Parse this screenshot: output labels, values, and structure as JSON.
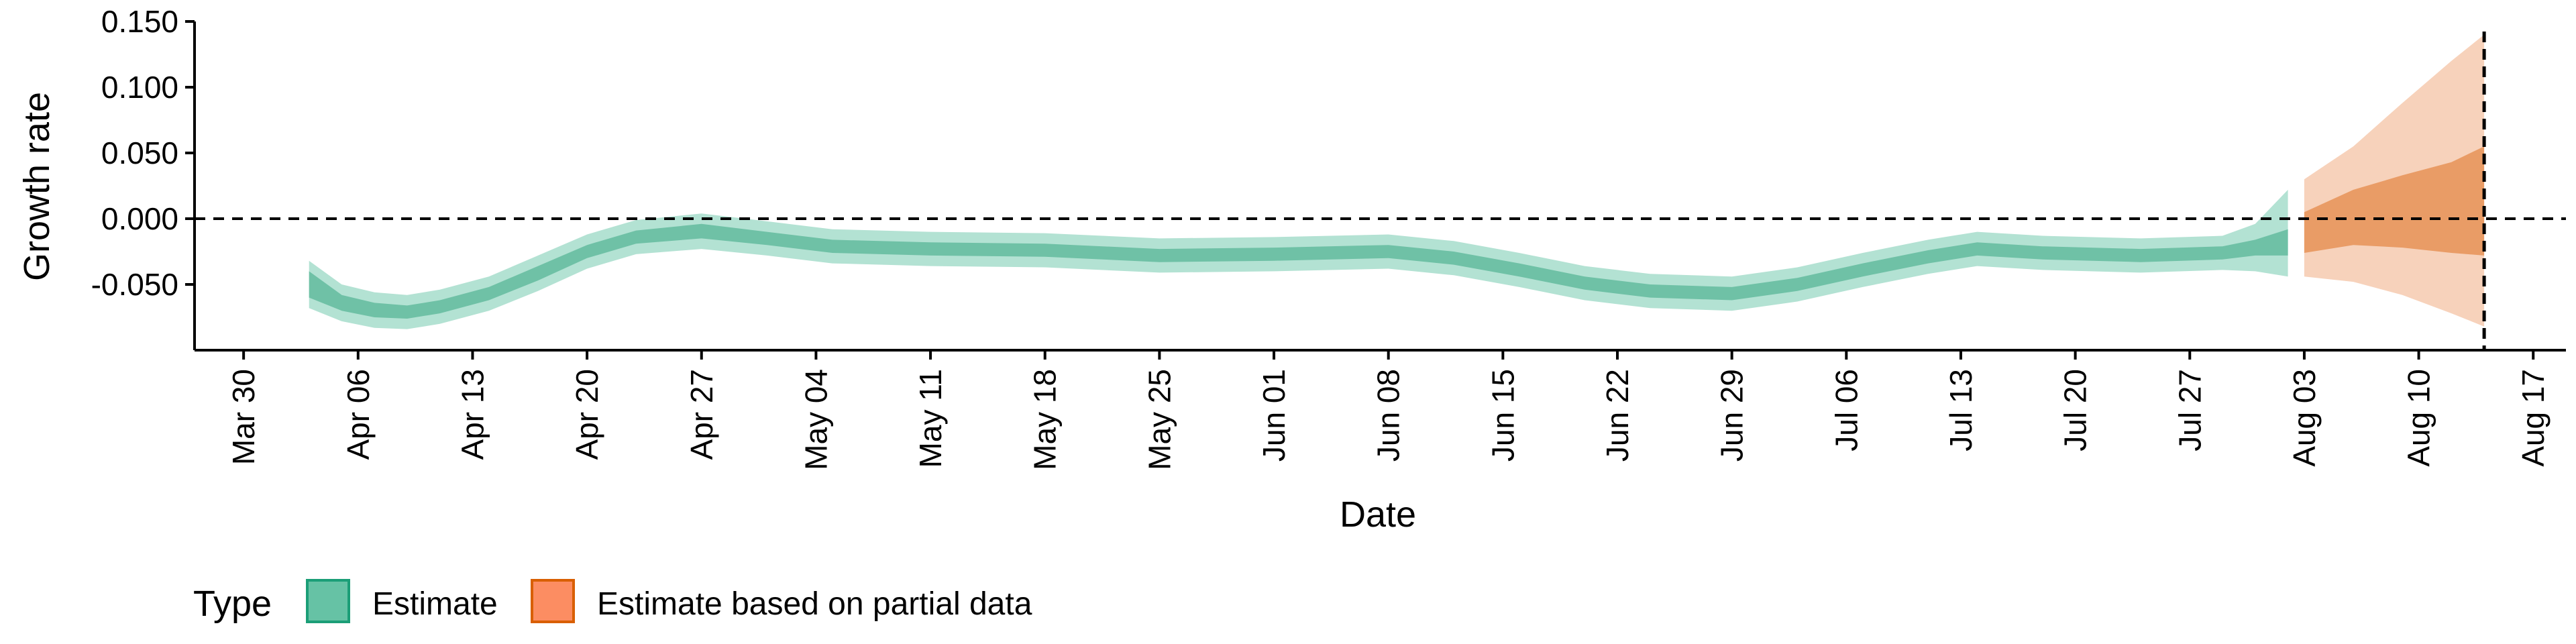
{
  "chart_data": {
    "type": "area",
    "title": "",
    "xlabel": "Date",
    "ylabel": "Growth rate",
    "x_range": [
      "2020-03-27",
      "2020-08-19"
    ],
    "ylim": [
      -0.1,
      0.15
    ],
    "x_ticks": [
      {
        "date": "2020-03-30",
        "label": "Mar 30"
      },
      {
        "date": "2020-04-06",
        "label": "Apr 06"
      },
      {
        "date": "2020-04-13",
        "label": "Apr 13"
      },
      {
        "date": "2020-04-20",
        "label": "Apr 20"
      },
      {
        "date": "2020-04-27",
        "label": "Apr 27"
      },
      {
        "date": "2020-05-04",
        "label": "May 04"
      },
      {
        "date": "2020-05-11",
        "label": "May 11"
      },
      {
        "date": "2020-05-18",
        "label": "May 18"
      },
      {
        "date": "2020-05-25",
        "label": "May 25"
      },
      {
        "date": "2020-06-01",
        "label": "Jun 01"
      },
      {
        "date": "2020-06-08",
        "label": "Jun 08"
      },
      {
        "date": "2020-06-15",
        "label": "Jun 15"
      },
      {
        "date": "2020-06-22",
        "label": "Jun 22"
      },
      {
        "date": "2020-06-29",
        "label": "Jun 29"
      },
      {
        "date": "2020-07-06",
        "label": "Jul 06"
      },
      {
        "date": "2020-07-13",
        "label": "Jul 13"
      },
      {
        "date": "2020-07-20",
        "label": "Jul 20"
      },
      {
        "date": "2020-07-27",
        "label": "Jul 27"
      },
      {
        "date": "2020-08-03",
        "label": "Aug 03"
      },
      {
        "date": "2020-08-10",
        "label": "Aug 10"
      },
      {
        "date": "2020-08-17",
        "label": "Aug 17"
      }
    ],
    "y_ticks": [
      {
        "value": -0.05,
        "label": "-0.050"
      },
      {
        "value": 0.0,
        "label": "0.000"
      },
      {
        "value": 0.05,
        "label": "0.050"
      },
      {
        "value": 0.1,
        "label": "0.100"
      },
      {
        "value": 0.15,
        "label": "0.150"
      }
    ],
    "reference_lines": {
      "horizontal_y": 0,
      "vertical_date": "2020-08-14"
    },
    "legend": {
      "title": "Type",
      "position": "bottom-left",
      "entries": [
        {
          "label": "Estimate",
          "fill": "#66c2a5",
          "border": "#1b9e77"
        },
        {
          "label": "Estimate based on partial data",
          "fill": "#fc8d62",
          "border": "#d95f02"
        }
      ]
    },
    "series": [
      {
        "name": "Estimate",
        "colors": {
          "outer": "#b3e2d3",
          "inner": "#6fc1a6"
        },
        "points": [
          {
            "x": "2020-04-03",
            "lo90": -0.068,
            "lo50": -0.06,
            "hi50": -0.04,
            "hi90": -0.032
          },
          {
            "x": "2020-04-05",
            "lo90": -0.078,
            "lo50": -0.07,
            "hi50": -0.058,
            "hi90": -0.05
          },
          {
            "x": "2020-04-07",
            "lo90": -0.083,
            "lo50": -0.075,
            "hi50": -0.064,
            "hi90": -0.056
          },
          {
            "x": "2020-04-09",
            "lo90": -0.084,
            "lo50": -0.076,
            "hi50": -0.066,
            "hi90": -0.058
          },
          {
            "x": "2020-04-11",
            "lo90": -0.08,
            "lo50": -0.072,
            "hi50": -0.062,
            "hi90": -0.054
          },
          {
            "x": "2020-04-14",
            "lo90": -0.07,
            "lo50": -0.062,
            "hi50": -0.052,
            "hi90": -0.044
          },
          {
            "x": "2020-04-17",
            "lo90": -0.055,
            "lo50": -0.047,
            "hi50": -0.036,
            "hi90": -0.028
          },
          {
            "x": "2020-04-20",
            "lo90": -0.038,
            "lo50": -0.03,
            "hi50": -0.02,
            "hi90": -0.012
          },
          {
            "x": "2020-04-23",
            "lo90": -0.027,
            "lo50": -0.019,
            "hi50": -0.009,
            "hi90": -0.001
          },
          {
            "x": "2020-04-27",
            "lo90": -0.023,
            "lo50": -0.015,
            "hi50": -0.004,
            "hi90": 0.004
          },
          {
            "x": "2020-05-01",
            "lo90": -0.028,
            "lo50": -0.02,
            "hi50": -0.01,
            "hi90": -0.002
          },
          {
            "x": "2020-05-05",
            "lo90": -0.034,
            "lo50": -0.026,
            "hi50": -0.016,
            "hi90": -0.008
          },
          {
            "x": "2020-05-11",
            "lo90": -0.036,
            "lo50": -0.028,
            "hi50": -0.018,
            "hi90": -0.01
          },
          {
            "x": "2020-05-18",
            "lo90": -0.037,
            "lo50": -0.029,
            "hi50": -0.019,
            "hi90": -0.011
          },
          {
            "x": "2020-05-25",
            "lo90": -0.041,
            "lo50": -0.033,
            "hi50": -0.023,
            "hi90": -0.015
          },
          {
            "x": "2020-06-01",
            "lo90": -0.04,
            "lo50": -0.032,
            "hi50": -0.022,
            "hi90": -0.014
          },
          {
            "x": "2020-06-08",
            "lo90": -0.038,
            "lo50": -0.03,
            "hi50": -0.02,
            "hi90": -0.012
          },
          {
            "x": "2020-06-12",
            "lo90": -0.043,
            "lo50": -0.035,
            "hi50": -0.025,
            "hi90": -0.017
          },
          {
            "x": "2020-06-16",
            "lo90": -0.052,
            "lo50": -0.044,
            "hi50": -0.034,
            "hi90": -0.026
          },
          {
            "x": "2020-06-20",
            "lo90": -0.062,
            "lo50": -0.054,
            "hi50": -0.044,
            "hi90": -0.036
          },
          {
            "x": "2020-06-24",
            "lo90": -0.068,
            "lo50": -0.06,
            "hi50": -0.05,
            "hi90": -0.042
          },
          {
            "x": "2020-06-29",
            "lo90": -0.07,
            "lo50": -0.062,
            "hi50": -0.052,
            "hi90": -0.044
          },
          {
            "x": "2020-07-03",
            "lo90": -0.063,
            "lo50": -0.055,
            "hi50": -0.045,
            "hi90": -0.037
          },
          {
            "x": "2020-07-07",
            "lo90": -0.052,
            "lo50": -0.044,
            "hi50": -0.034,
            "hi90": -0.026
          },
          {
            "x": "2020-07-11",
            "lo90": -0.042,
            "lo50": -0.034,
            "hi50": -0.024,
            "hi90": -0.016
          },
          {
            "x": "2020-07-14",
            "lo90": -0.036,
            "lo50": -0.028,
            "hi50": -0.018,
            "hi90": -0.01
          },
          {
            "x": "2020-07-18",
            "lo90": -0.039,
            "lo50": -0.031,
            "hi50": -0.021,
            "hi90": -0.013
          },
          {
            "x": "2020-07-24",
            "lo90": -0.041,
            "lo50": -0.033,
            "hi50": -0.023,
            "hi90": -0.015
          },
          {
            "x": "2020-07-29",
            "lo90": -0.039,
            "lo50": -0.031,
            "hi50": -0.021,
            "hi90": -0.013
          },
          {
            "x": "2020-07-31",
            "lo90": -0.04,
            "lo50": -0.028,
            "hi50": -0.016,
            "hi90": -0.004
          },
          {
            "x": "2020-08-02",
            "lo90": -0.044,
            "lo50": -0.028,
            "hi50": -0.008,
            "hi90": 0.022
          }
        ]
      },
      {
        "name": "Estimate based on partial data",
        "colors": {
          "outer": "#f7d2bb",
          "inner": "#e99c66"
        },
        "points": [
          {
            "x": "2020-08-03",
            "lo90": -0.044,
            "lo50": -0.026,
            "hi50": 0.005,
            "hi90": 0.03
          },
          {
            "x": "2020-08-06",
            "lo90": -0.048,
            "lo50": -0.02,
            "hi50": 0.022,
            "hi90": 0.055
          },
          {
            "x": "2020-08-09",
            "lo90": -0.058,
            "lo50": -0.022,
            "hi50": 0.033,
            "hi90": 0.088
          },
          {
            "x": "2020-08-12",
            "lo90": -0.072,
            "lo50": -0.026,
            "hi50": 0.043,
            "hi90": 0.12
          },
          {
            "x": "2020-08-14",
            "lo90": -0.082,
            "lo50": -0.028,
            "hi50": 0.055,
            "hi90": 0.14
          }
        ]
      }
    ]
  }
}
